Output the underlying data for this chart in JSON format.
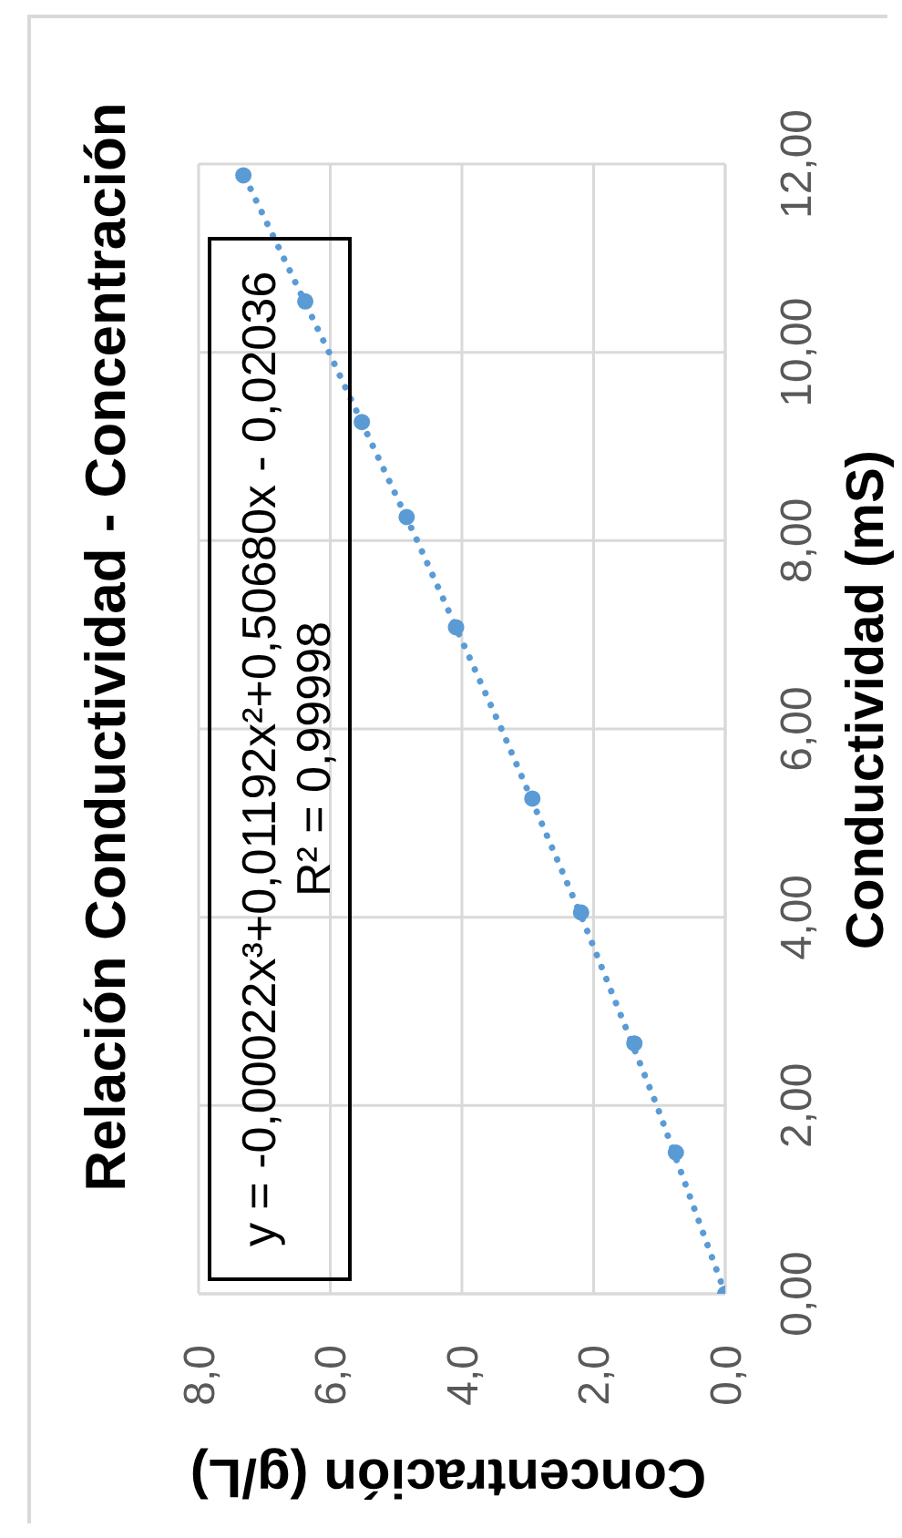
{
  "chart_data": {
    "type": "scatter",
    "title": "Relación Conductividad - Concentración",
    "xlabel": "Concentración (g/L)",
    "ylabel": "Conductividad (mS)",
    "annotations": [
      "y = -0,00022x³+0,01192x²+0,50680x - 0,02036",
      "R² = 0,99998"
    ],
    "series": [
      {
        "color": "#5b9bd5",
        "x": [
          0,
          0.75,
          1.38,
          2.19,
          2.93,
          4.09,
          4.84,
          5.52,
          6.38,
          7.32
        ],
        "values": [
          0,
          1.5,
          2.66,
          4.05,
          5.26,
          7.08,
          8.25,
          9.26,
          10.54,
          11.88
        ]
      },
      {
        "type": "line",
        "color": "#5b9bd5",
        "line_style": "dotted",
        "marker": "none",
        "x": [
          0,
          1.04,
          2.18,
          3.4,
          4.68,
          6.02,
          7.31
        ],
        "values": [
          0,
          2,
          4,
          6,
          8,
          10,
          11.88
        ]
      }
    ],
    "marker": "circle",
    "xlim": [
      8,
      0
    ],
    "xticks": [
      {
        "value": 8,
        "label": "8,0"
      },
      {
        "value": 6,
        "label": "6,0"
      },
      {
        "value": 4,
        "label": "4,0"
      },
      {
        "value": 2,
        "label": "2,0"
      },
      {
        "value": 0,
        "label": "0,0"
      }
    ],
    "ylim": [
      0,
      12
    ],
    "yticks": [
      {
        "value": 0,
        "label": "0,00"
      },
      {
        "value": 2,
        "label": "2,00"
      },
      {
        "value": 4,
        "label": "4,00"
      },
      {
        "value": 6,
        "label": "6,00"
      },
      {
        "value": 8,
        "label": "8,00"
      },
      {
        "value": 10,
        "label": "10,00"
      },
      {
        "value": 12,
        "label": "12,00"
      }
    ],
    "grid": true
  }
}
